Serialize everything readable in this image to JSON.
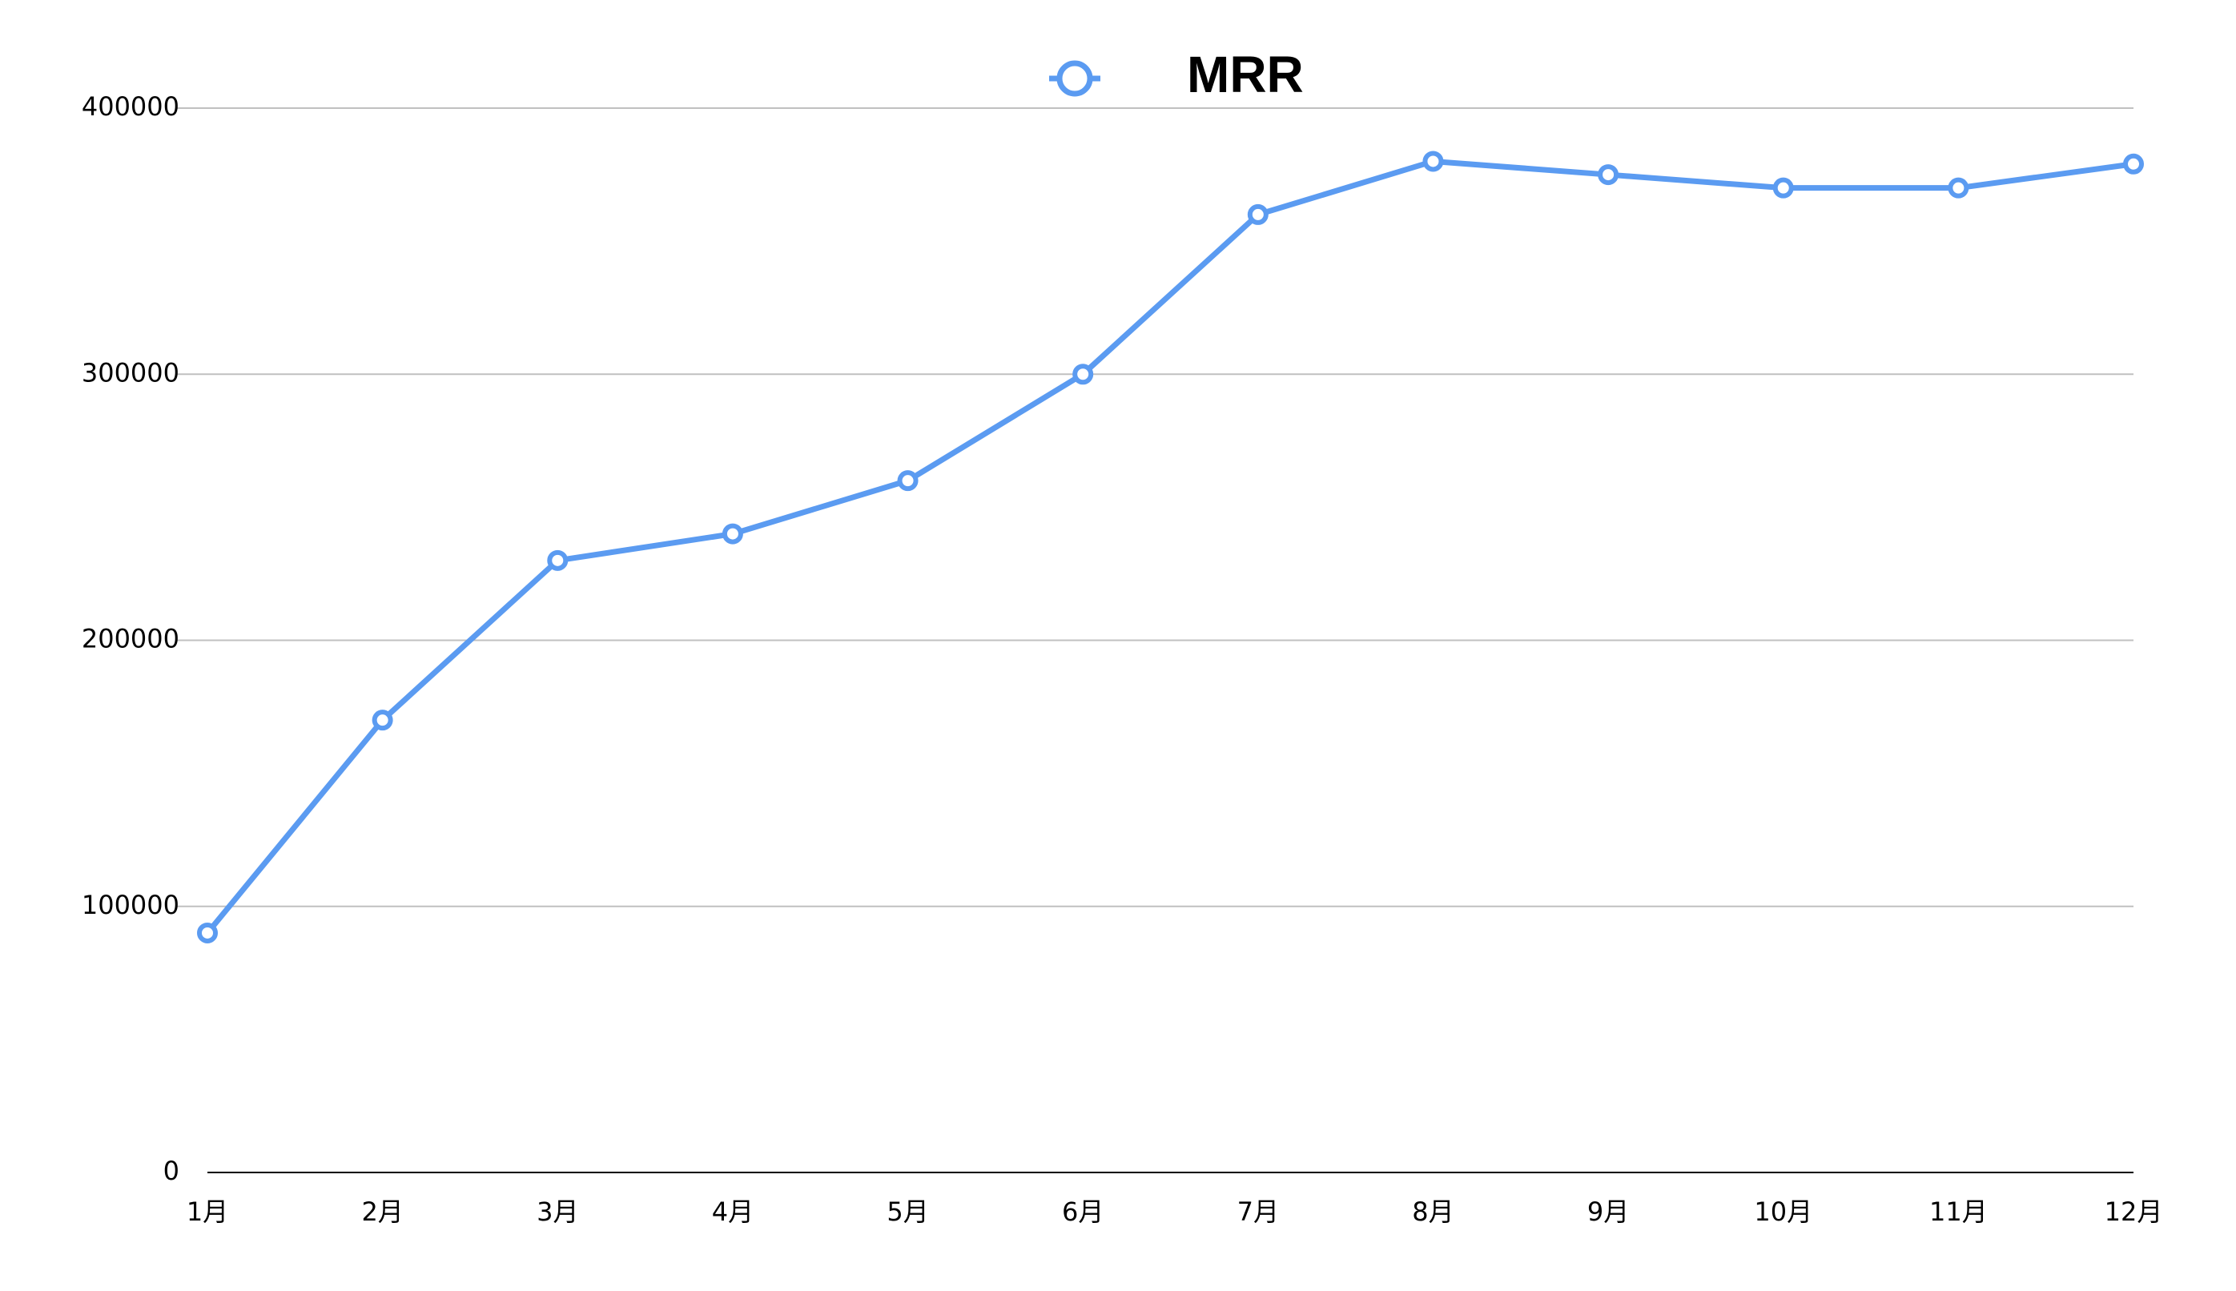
{
  "chart_data": {
    "type": "line",
    "title": "",
    "xlabel": "",
    "ylabel": "",
    "categories": [
      "1月",
      "2月",
      "3月",
      "4月",
      "5月",
      "6月",
      "7月",
      "8月",
      "9月",
      "10月",
      "11月",
      "12月"
    ],
    "series": [
      {
        "name": "MRR",
        "values": [
          90000,
          170000,
          230000,
          240000,
          260000,
          300000,
          360000,
          380000,
          375000,
          370000,
          370000,
          379000
        ],
        "color": "#5b9bf1",
        "marker": "open-circle"
      }
    ],
    "ylim": [
      0,
      400000
    ],
    "yticks": [
      "0",
      "100000",
      "200000",
      "300000",
      "400000"
    ],
    "grid": true,
    "legend_position": "top-center",
    "colors": {
      "series_line": "#5b9bf1",
      "grid_line": "#c0c0c0",
      "axis_line": "#000000",
      "text": "#000000"
    }
  }
}
